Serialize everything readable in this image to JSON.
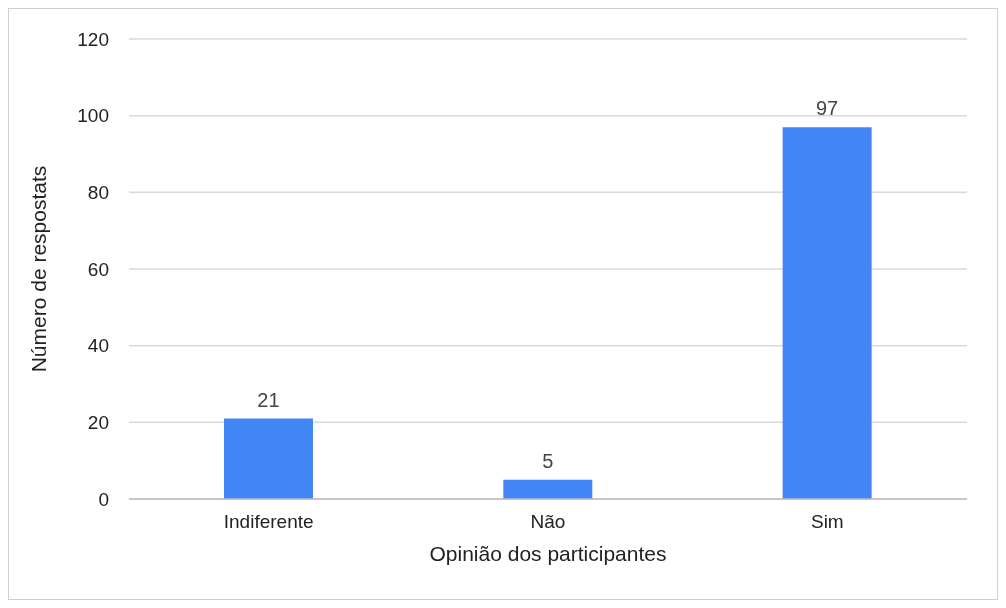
{
  "chart_data": {
    "type": "bar",
    "xlabel": "Opinião dos participantes",
    "ylabel": "Número de respostats",
    "categories": [
      "Indiferente",
      "Não",
      "Sim"
    ],
    "values": [
      21,
      5,
      97
    ],
    "color": "#4285f4",
    "ylim": [
      0,
      120
    ],
    "yticks": [
      0,
      20,
      40,
      60,
      80,
      100,
      120
    ],
    "grid": "y",
    "data_labels": true
  }
}
